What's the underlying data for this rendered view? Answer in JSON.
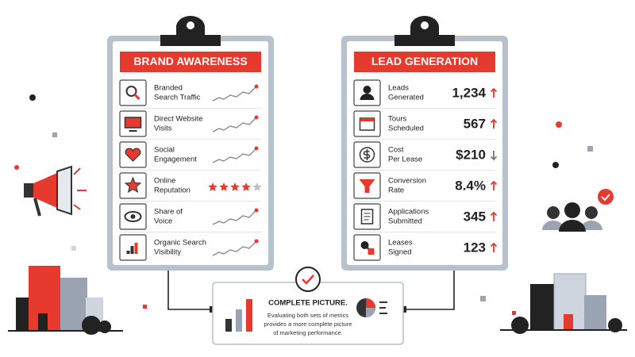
{
  "brand_awareness": {
    "title": "BRAND AWARENESS",
    "items": [
      {
        "label": [
          "Branded",
          "Search Traffic"
        ]
      },
      {
        "label": [
          "Direct Website",
          "Visits"
        ]
      },
      {
        "label": [
          "Social",
          "Engagement"
        ]
      },
      {
        "label": [
          "Online",
          "Reputation"
        ],
        "rating": 4,
        "rating_max": 5
      },
      {
        "label": [
          "Share of",
          "Voice"
        ]
      },
      {
        "label": [
          "Organic Search",
          "Visibility"
        ]
      }
    ]
  },
  "lead_generation": {
    "title": "LEAD GENERATION",
    "items": [
      {
        "label": [
          "Leads",
          "Generated"
        ],
        "value": "1,234",
        "trend": "up"
      },
      {
        "label": [
          "Tours",
          "Scheduled"
        ],
        "value": "567",
        "trend": "up"
      },
      {
        "label": [
          "Cost",
          "Per Lease"
        ],
        "value": "$210",
        "trend": "down"
      },
      {
        "label": [
          "Conversion",
          "Rate"
        ],
        "value": "8.4%",
        "trend": "up"
      },
      {
        "label": [
          "Applications",
          "Submitted"
        ],
        "value": "345",
        "trend": "up"
      },
      {
        "label": [
          "Leases",
          "Signed"
        ],
        "value": "123",
        "trend": "up"
      }
    ]
  },
  "summary": {
    "title": "COMPLETE PICTURE.",
    "text": [
      "Evaluating both sets of metrics",
      "provides a more complete picture",
      "of marketing performance."
    ]
  }
}
